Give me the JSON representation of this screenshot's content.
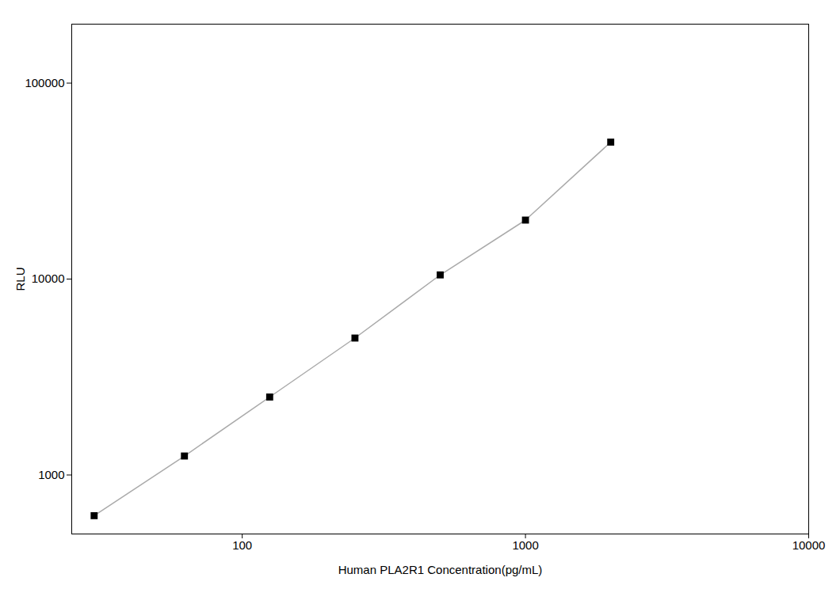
{
  "chart_data": {
    "type": "line",
    "x": [
      30,
      62.5,
      125,
      250,
      500,
      1000,
      2000
    ],
    "values": [
      620,
      1250,
      2500,
      5000,
      10500,
      20000,
      50000
    ],
    "xlabel": "Human PLA2R1 Concentration(pg/mL)",
    "ylabel": "RLU",
    "xlim": [
      25,
      10000
    ],
    "ylim": [
      500,
      200000
    ],
    "xticks": [
      100,
      1000,
      10000
    ],
    "yticks": [
      1000,
      10000,
      100000
    ],
    "log": true,
    "grid": false,
    "color": "#aaaaaa",
    "marker": "square"
  }
}
